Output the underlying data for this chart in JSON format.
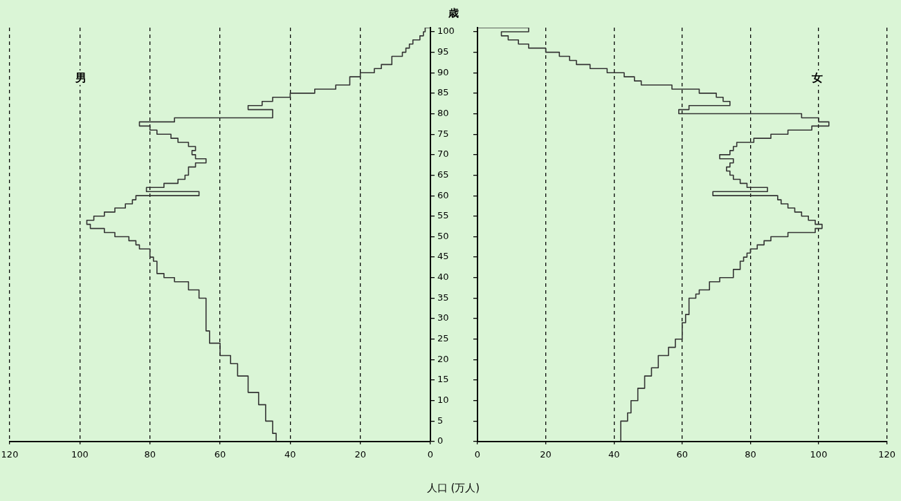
{
  "chart_data": [
    {
      "type": "step",
      "orientation": "horizontal",
      "ylabel": "歳",
      "xlabel": "人口 (万人)",
      "xlim": [
        120,
        0
      ],
      "xticks": [
        0,
        20,
        40,
        60,
        80,
        100,
        120
      ],
      "ylim": [
        0,
        101
      ],
      "yticks": [
        0,
        5,
        10,
        15,
        20,
        25,
        30,
        35,
        40,
        45,
        50,
        55,
        60,
        65,
        70,
        75,
        80,
        85,
        90,
        95,
        100
      ],
      "grid": "x",
      "marker": "none",
      "series": [
        {
          "name": "男",
          "color": "#333333",
          "x": [
            0,
            2,
            5,
            9,
            12,
            16,
            19,
            21,
            24,
            27,
            30,
            32,
            35,
            37,
            39,
            40,
            41,
            44,
            45,
            47,
            48,
            49,
            50,
            51,
            52,
            53,
            54,
            55,
            56,
            57,
            58,
            59,
            60,
            61,
            62,
            63,
            64,
            65,
            66,
            67,
            68,
            69,
            70,
            71,
            72,
            73,
            74,
            75,
            76,
            77,
            78,
            79,
            80,
            81,
            82,
            83,
            84,
            85,
            86,
            87,
            89,
            90,
            91,
            92,
            94,
            95,
            96,
            97,
            98,
            99,
            100,
            101
          ],
          "values": [
            44,
            45,
            47,
            49,
            52,
            55,
            57,
            60,
            63,
            64,
            64,
            64,
            66,
            69,
            73,
            76,
            78,
            79,
            80,
            83,
            84,
            86,
            90,
            93,
            97,
            98,
            96,
            93,
            90,
            87,
            85,
            84,
            66,
            81,
            76,
            72,
            70,
            69,
            69,
            67,
            64,
            67,
            68,
            67,
            69,
            72,
            74,
            78,
            80,
            83,
            73,
            45,
            45,
            52,
            48,
            45,
            40,
            33,
            27,
            23,
            20,
            16,
            14,
            11,
            8,
            7,
            6,
            5,
            3,
            2,
            1.5,
            0
          ]
        }
      ]
    },
    {
      "type": "step",
      "orientation": "horizontal",
      "xlim": [
        0,
        120
      ],
      "xticks": [
        0,
        20,
        40,
        60,
        80,
        100,
        120
      ],
      "ylim": [
        0,
        101
      ],
      "yticks": [
        0,
        5,
        10,
        15,
        20,
        25,
        30,
        35,
        40,
        45,
        50,
        55,
        60,
        65,
        70,
        75,
        80,
        85,
        90,
        95,
        100
      ],
      "grid": "x",
      "marker": "none",
      "tick_labels": "x",
      "series": [
        {
          "name": "女",
          "color": "#333333",
          "x": [
            0,
            2,
            5,
            7,
            10,
            13,
            16,
            18,
            21,
            23,
            25,
            27,
            29,
            31,
            34,
            35,
            36,
            37,
            39,
            40,
            42,
            44,
            45,
            46,
            47,
            48,
            49,
            50,
            51,
            52,
            53,
            54,
            55,
            56,
            57,
            58,
            59,
            60,
            61,
            62,
            63,
            64,
            65,
            66,
            67,
            68,
            69,
            70,
            71,
            72,
            73,
            74,
            75,
            76,
            77,
            78,
            79,
            80,
            81,
            82,
            83,
            84,
            85,
            86,
            87,
            88,
            89,
            90,
            91,
            92,
            93,
            94,
            95,
            96,
            97,
            98,
            99,
            100,
            101
          ],
          "values": [
            42,
            42,
            44,
            45,
            47,
            49,
            51,
            53,
            56,
            58,
            60,
            60,
            61,
            62,
            62,
            64,
            65,
            68,
            71,
            75,
            77,
            78,
            79,
            80,
            82,
            84,
            86,
            91,
            99,
            101,
            99,
            97,
            95,
            93,
            91,
            89,
            88,
            69,
            85,
            79,
            77,
            75,
            74,
            73,
            74,
            75,
            71,
            74,
            75,
            76,
            81,
            86,
            91,
            98,
            103,
            100,
            95,
            59,
            62,
            74,
            72,
            70,
            65,
            57,
            48,
            46,
            43,
            38,
            33,
            29,
            27,
            24,
            20,
            15,
            12,
            9,
            7,
            15,
            0
          ]
        }
      ]
    }
  ]
}
